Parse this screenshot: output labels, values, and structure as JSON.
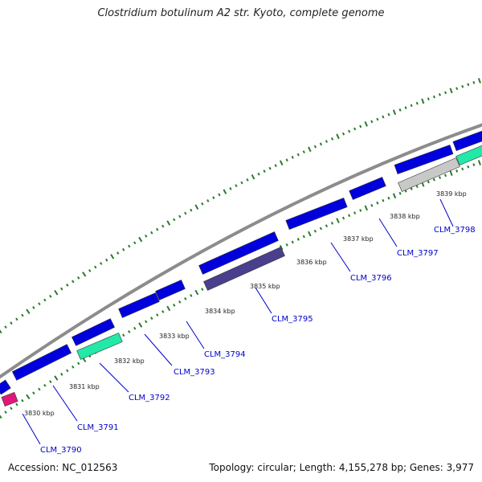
{
  "title": "Clostridium botulinum A2 str. Kyoto, complete genome",
  "footer": {
    "accession": "Accession: NC_012563",
    "summary": "Topology: circular; Length: 4,155,278 bp; Genes: 3,977"
  },
  "colors": {
    "backbone": "#8c8c8c",
    "forward_gene": "#0000dd",
    "reverse_gene": "#4a3f8c",
    "teal_feature": "#22e8a8",
    "grey_feature": "#c8c8c8",
    "magenta_feature": "#e0187a",
    "tick": "#2a7a2a",
    "label": "#0000cc"
  },
  "ticks_kbp": [
    "3830 kbp",
    "3831 kbp",
    "3832 kbp",
    "3833 kbp",
    "3834 kbp",
    "3835 kbp",
    "3836 kbp",
    "3837 kbp",
    "3838 kbp",
    "3839 kbp"
  ],
  "gene_labels": [
    "CLM_3790",
    "CLM_3791",
    "CLM_3792",
    "CLM_3793",
    "CLM_3794",
    "CLM_3795",
    "CLM_3796",
    "CLM_3797",
    "CLM_3798"
  ]
}
